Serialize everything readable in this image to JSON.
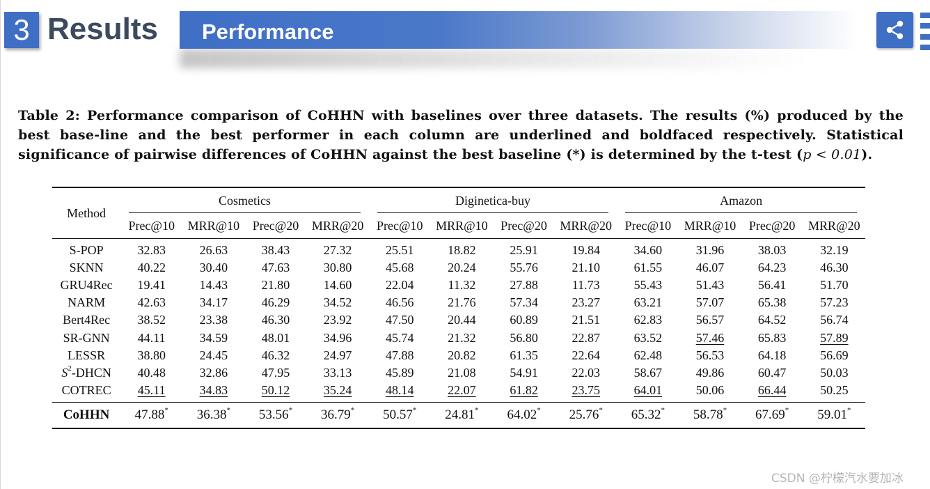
{
  "header": {
    "section_number": "3",
    "section_title": "Results",
    "banner_title": "Performance"
  },
  "caption": {
    "prefix": "Table 2: Performance comparison of CoHHN with baselines over three datasets. The results (%) produced by the best base-line and the best performer in each column are underlined and boldfaced respectively. Statistical significance of pairwise differences of CoHHN against the best baseline (*) is determined by the t-test (",
    "math": "p < 0.01",
    "suffix": ")."
  },
  "table": {
    "method_header": "Method",
    "groups": [
      "Cosmetics",
      "Diginetica-buy",
      "Amazon"
    ],
    "metrics": [
      "Prec@10",
      "MRR@10",
      "Prec@20",
      "MRR@20"
    ],
    "rows": [
      {
        "method": "S-POP",
        "values": [
          "32.83",
          "26.63",
          "38.43",
          "27.32",
          "25.51",
          "18.82",
          "25.91",
          "19.84",
          "34.60",
          "31.96",
          "38.03",
          "32.19"
        ]
      },
      {
        "method": "SKNN",
        "values": [
          "40.22",
          "30.40",
          "47.63",
          "30.80",
          "45.68",
          "20.24",
          "55.76",
          "21.10",
          "61.55",
          "46.07",
          "64.23",
          "46.30"
        ]
      },
      {
        "method": "GRU4Rec",
        "values": [
          "19.41",
          "14.43",
          "21.80",
          "14.60",
          "22.04",
          "11.32",
          "27.88",
          "11.73",
          "55.43",
          "51.43",
          "56.41",
          "51.70"
        ]
      },
      {
        "method": "NARM",
        "values": [
          "42.63",
          "34.17",
          "46.29",
          "34.52",
          "46.56",
          "21.76",
          "57.34",
          "23.27",
          "63.21",
          "57.07",
          "65.38",
          "57.23"
        ]
      },
      {
        "method": "Bert4Rec",
        "values": [
          "38.52",
          "23.38",
          "46.30",
          "23.92",
          "47.50",
          "20.44",
          "60.89",
          "21.51",
          "62.83",
          "56.57",
          "64.52",
          "56.74"
        ]
      },
      {
        "method": "SR-GNN",
        "values": [
          "44.11",
          "34.59",
          "48.01",
          "34.96",
          "45.74",
          "21.32",
          "56.80",
          "22.87",
          "63.52",
          "57.46",
          "65.83",
          "57.89"
        ]
      },
      {
        "method": "LESSR",
        "values": [
          "38.80",
          "24.45",
          "46.32",
          "24.97",
          "47.88",
          "20.82",
          "61.35",
          "22.64",
          "62.48",
          "56.53",
          "64.18",
          "56.69"
        ]
      },
      {
        "method_base": "S",
        "method_sup": "2",
        "method_rest": "-DHCN",
        "values": [
          "40.48",
          "32.86",
          "47.95",
          "33.13",
          "45.89",
          "21.08",
          "54.91",
          "22.03",
          "58.67",
          "49.86",
          "60.47",
          "50.03"
        ]
      },
      {
        "method": "COTREC",
        "values": [
          "45.11",
          "34.83",
          "50.12",
          "35.24",
          "48.14",
          "22.07",
          "61.82",
          "23.75",
          "64.01",
          "50.06",
          "66.44",
          "50.25"
        ]
      }
    ],
    "final": {
      "method": "CoHHN",
      "values": [
        "47.88",
        "36.38",
        "53.56",
        "36.79",
        "50.57",
        "24.81",
        "64.02",
        "25.76",
        "65.32",
        "58.78",
        "67.69",
        "59.01"
      ],
      "marker": "*"
    }
  },
  "watermark": "CSDN @柠檬汽水要加冰"
}
